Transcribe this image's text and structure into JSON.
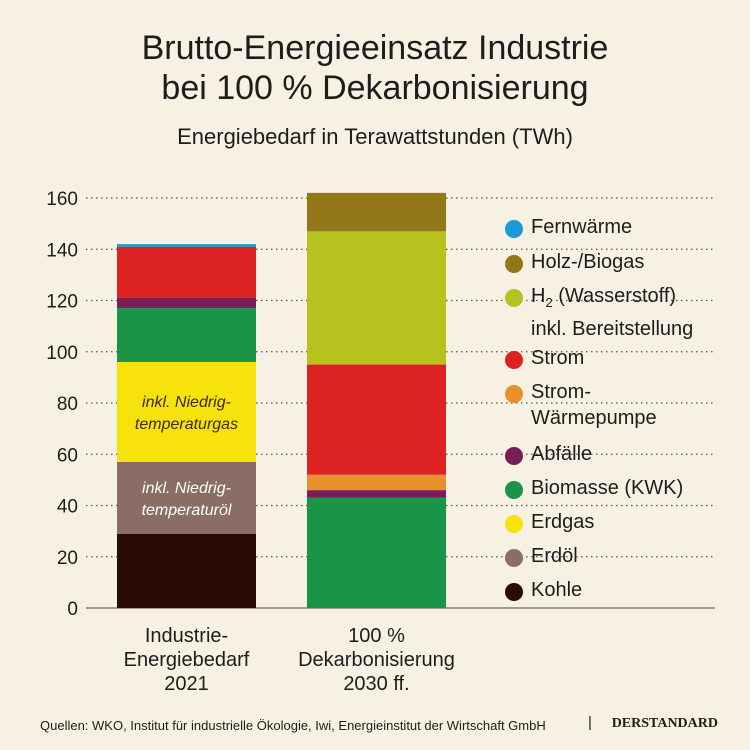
{
  "title_line1": "Brutto-Energieeinsatz Industrie",
  "title_line2": "bei 100 % Dekarbonisierung",
  "subtitle": "Energiebedarf in Terawattstunden (TWh)",
  "source": "Quellen: WKO, Institut für industrielle Ökologie, Iwi, Energieinstitut der Wirtschaft GmbH",
  "brand": "DERSTANDARD",
  "separator": "|",
  "chart_data": {
    "type": "bar",
    "stacked": true,
    "categories": [
      "Industrie-\nEnergiebedarf\n2021",
      "100 %\nDekarbonisierung\n2030 ff."
    ],
    "ylim": [
      0,
      160
    ],
    "yticks": [
      0,
      20,
      40,
      60,
      80,
      100,
      120,
      140,
      160
    ],
    "grid": "dotted",
    "legend_position": "right",
    "series": [
      {
        "name": "Kohle",
        "color": "#2a0a05",
        "values": [
          29,
          0
        ]
      },
      {
        "name": "Erdöl",
        "color": "#8a6e66",
        "values": [
          28,
          0
        ],
        "bar_labels": [
          "inkl. Niedrig-\ntemperaturöl",
          ""
        ]
      },
      {
        "name": "Erdgas",
        "color": "#f7e20c",
        "values": [
          39,
          0
        ],
        "bar_labels": [
          "inkl. Niedrig-\ntemperaturgas",
          ""
        ]
      },
      {
        "name": "Biomasse (KWK)",
        "color": "#1a9447",
        "values": [
          21,
          43
        ]
      },
      {
        "name": "Abfälle",
        "color": "#7a1f55",
        "values": [
          4,
          3
        ]
      },
      {
        "name": "Strom-\nWärmepumpe",
        "color": "#e8912a",
        "values": [
          0,
          6
        ]
      },
      {
        "name": "Strom",
        "color": "#dd2222",
        "values": [
          20,
          43
        ]
      },
      {
        "name": "H2 (Wasserstoff)\ninkl. Bereitstellung",
        "color": "#b6c21e",
        "values": [
          0,
          52
        ]
      },
      {
        "name": "Holz-/Biogas",
        "color": "#93781a",
        "values": [
          0,
          15
        ]
      },
      {
        "name": "Fernwärme",
        "color": "#1a9bd7",
        "values": [
          1,
          0
        ]
      }
    ]
  }
}
